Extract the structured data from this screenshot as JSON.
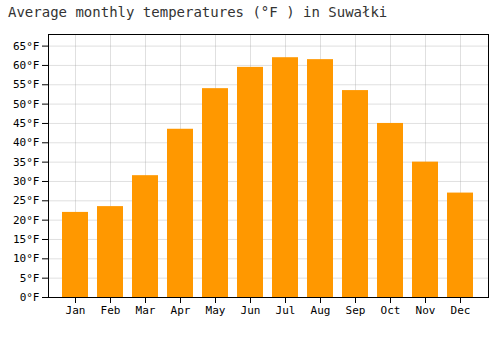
{
  "chart_data": {
    "type": "bar",
    "title": "Average monthly temperatures (°F ) in Suwałki",
    "categories": [
      "Jan",
      "Feb",
      "Mar",
      "Apr",
      "May",
      "Jun",
      "Jul",
      "Aug",
      "Sep",
      "Oct",
      "Nov",
      "Dec"
    ],
    "values": [
      22,
      23.5,
      31.5,
      43.5,
      54,
      59.5,
      62,
      61.5,
      53.5,
      45,
      35,
      27
    ],
    "color": "#FF9800",
    "ylim": [
      0,
      68
    ],
    "yticks": [
      {
        "value": 0,
        "label": "0°F"
      },
      {
        "value": 5,
        "label": "5°F"
      },
      {
        "value": 10,
        "label": "10°F"
      },
      {
        "value": 15,
        "label": "15°F"
      },
      {
        "value": 20,
        "label": "20°F"
      },
      {
        "value": 25,
        "label": "25°F"
      },
      {
        "value": 30,
        "label": "30°F"
      },
      {
        "value": 35,
        "label": "35°F"
      },
      {
        "value": 40,
        "label": "40°F"
      },
      {
        "value": 45,
        "label": "45°F"
      },
      {
        "value": 50,
        "label": "50°F"
      },
      {
        "value": 55,
        "label": "55°F"
      },
      {
        "value": 60,
        "label": "60°F"
      },
      {
        "value": 65,
        "label": "65°F"
      }
    ],
    "grid": true
  }
}
